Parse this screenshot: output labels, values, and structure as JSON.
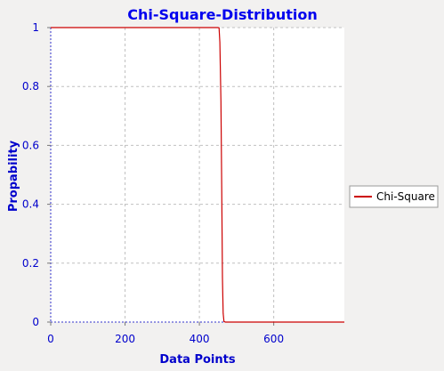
{
  "chart_data": {
    "type": "line",
    "title": "Chi-Square-Distribution",
    "xlabel": "Data Points",
    "ylabel": "Propability",
    "xlim": [
      0,
      790
    ],
    "ylim": [
      0,
      1
    ],
    "x_ticks": [
      0,
      200,
      400,
      600
    ],
    "x_tick_labels": [
      "0",
      "200",
      "400",
      "600"
    ],
    "y_ticks": [
      0,
      0.2,
      0.4,
      0.6,
      0.8,
      1
    ],
    "y_tick_labels": [
      "0",
      "0.2",
      "0.4",
      "0.6",
      "0.8",
      "1"
    ],
    "grid": true,
    "legend_position": "right",
    "series": [
      {
        "name": "Chi-Square",
        "color": "#cc0000",
        "x": [
          0,
          100,
          200,
          300,
          400,
          450,
          453,
          455,
          458,
          460,
          462,
          464,
          466,
          470,
          500,
          600,
          700,
          790
        ],
        "y": [
          1,
          1,
          1,
          1,
          1,
          1,
          0.999,
          0.95,
          0.75,
          0.45,
          0.15,
          0.03,
          0.002,
          0,
          0,
          0,
          0,
          0
        ]
      }
    ]
  }
}
